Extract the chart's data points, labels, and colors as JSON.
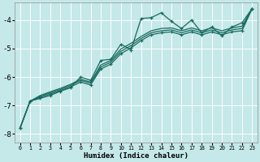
{
  "xlabel": "Humidex (Indice chaleur)",
  "bg_color": "#c5e8e8",
  "grid_color": "#ffffff",
  "line_color": "#1a6b60",
  "xlim": [
    -0.5,
    23.5
  ],
  "ylim": [
    -8.3,
    -3.4
  ],
  "xticks": [
    0,
    1,
    2,
    3,
    4,
    5,
    6,
    7,
    8,
    9,
    10,
    11,
    12,
    13,
    14,
    15,
    16,
    17,
    18,
    19,
    20,
    21,
    22,
    23
  ],
  "yticks": [
    -8,
    -7,
    -6,
    -5,
    -4
  ],
  "line1_x": [
    0,
    1,
    2,
    3,
    4,
    5,
    6,
    7,
    8,
    9,
    10,
    11,
    12,
    13,
    14,
    15,
    16,
    17,
    18,
    19,
    20,
    21,
    22,
    23
  ],
  "line1_y": [
    -7.8,
    -6.85,
    -6.75,
    -6.65,
    -6.5,
    -6.38,
    -6.0,
    -6.12,
    -5.42,
    -5.38,
    -4.85,
    -5.05,
    -3.95,
    -3.92,
    -3.75,
    -4.05,
    -4.3,
    -4.0,
    -4.45,
    -4.25,
    -4.55,
    -4.25,
    -4.1,
    -3.6
  ],
  "line2_x": [
    0,
    1,
    2,
    3,
    4,
    5,
    6,
    7,
    8,
    9,
    10,
    11,
    12,
    13,
    14,
    15,
    16,
    17,
    18,
    19,
    20,
    21,
    22,
    23
  ],
  "line2_y": [
    -7.8,
    -6.85,
    -6.72,
    -6.6,
    -6.48,
    -6.35,
    -6.18,
    -6.28,
    -5.72,
    -5.55,
    -5.18,
    -4.98,
    -4.72,
    -4.52,
    -4.45,
    -4.42,
    -4.52,
    -4.42,
    -4.52,
    -4.42,
    -4.52,
    -4.42,
    -4.38,
    -3.6
  ],
  "line3_x": [
    0,
    1,
    2,
    3,
    4,
    5,
    6,
    7,
    8,
    9,
    10,
    11,
    12,
    13,
    14,
    15,
    16,
    17,
    18,
    19,
    20,
    21,
    22,
    23
  ],
  "line3_y": [
    -7.8,
    -6.85,
    -6.68,
    -6.56,
    -6.44,
    -6.3,
    -6.12,
    -6.22,
    -5.65,
    -5.48,
    -5.1,
    -4.9,
    -4.65,
    -4.45,
    -4.38,
    -4.35,
    -4.45,
    -4.35,
    -4.45,
    -4.35,
    -4.45,
    -4.35,
    -4.3,
    -3.6
  ],
  "line4_x": [
    0,
    1,
    2,
    3,
    4,
    5,
    6,
    7,
    8,
    9,
    10,
    11,
    12,
    13,
    14,
    15,
    16,
    17,
    18,
    19,
    20,
    21,
    22,
    23
  ],
  "line4_y": [
    -7.8,
    -6.85,
    -6.65,
    -6.52,
    -6.4,
    -6.26,
    -6.08,
    -6.18,
    -5.58,
    -5.42,
    -5.02,
    -4.82,
    -4.58,
    -4.38,
    -4.3,
    -4.28,
    -4.38,
    -4.28,
    -4.38,
    -4.28,
    -4.38,
    -4.28,
    -4.22,
    -3.6
  ]
}
